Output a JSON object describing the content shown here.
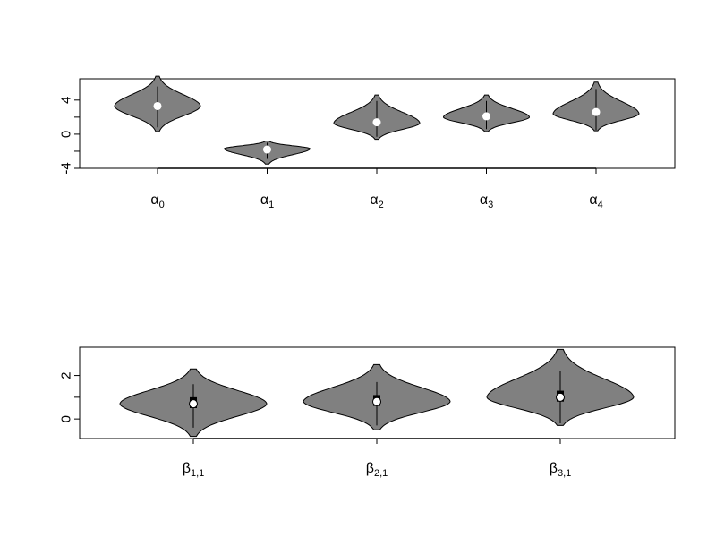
{
  "chart_data": [
    {
      "type": "violin",
      "title": "",
      "xlabel": "",
      "ylabel": "",
      "ylim": [
        -4,
        6.5
      ],
      "yticks": [
        -4,
        0,
        4
      ],
      "categories": [
        {
          "base": "α",
          "sub": "0"
        },
        {
          "base": "α",
          "sub": "1"
        },
        {
          "base": "α",
          "sub": "2"
        },
        {
          "base": "α",
          "sub": "3"
        },
        {
          "base": "α",
          "sub": "4"
        }
      ],
      "violins": [
        {
          "min": 0.3,
          "max": 6.8,
          "mode": 3.3,
          "median": 3.3,
          "q1": 2.4,
          "q3": 4.2,
          "lo": 0.8,
          "hi": 5.6
        },
        {
          "min": -3.5,
          "max": -0.8,
          "mode": -1.7,
          "median": -1.8,
          "q1": -2.2,
          "q3": -1.3,
          "lo": -2.9,
          "hi": -1.0
        },
        {
          "min": -0.6,
          "max": 4.6,
          "mode": 1.3,
          "median": 1.4,
          "q1": 0.7,
          "q3": 2.2,
          "lo": -0.3,
          "hi": 3.9
        },
        {
          "min": 0.3,
          "max": 4.6,
          "mode": 2.0,
          "median": 2.1,
          "q1": 1.5,
          "q3": 2.8,
          "lo": 0.6,
          "hi": 3.9
        },
        {
          "min": 0.4,
          "max": 6.1,
          "mode": 2.4,
          "median": 2.6,
          "q1": 1.9,
          "q3": 3.5,
          "lo": 0.5,
          "hi": 5.3
        }
      ],
      "box_style": "point",
      "fill": "#808080"
    },
    {
      "type": "violin",
      "title": "",
      "xlabel": "",
      "ylabel": "",
      "ylim": [
        -0.9,
        3.3
      ],
      "yticks": [
        0,
        2
      ],
      "categories": [
        {
          "base": "β",
          "sub": "1,1"
        },
        {
          "base": "β",
          "sub": "2,1"
        },
        {
          "base": "β",
          "sub": "3,1"
        }
      ],
      "violins": [
        {
          "min": -0.8,
          "max": 2.3,
          "mode": 0.7,
          "median": 0.7,
          "q1": 0.5,
          "q3": 1.0,
          "lo": -0.4,
          "hi": 1.6
        },
        {
          "min": -0.5,
          "max": 2.5,
          "mode": 0.8,
          "median": 0.8,
          "q1": 0.6,
          "q3": 1.1,
          "lo": -0.3,
          "hi": 1.7
        },
        {
          "min": -0.3,
          "max": 3.2,
          "mode": 1.0,
          "median": 1.0,
          "q1": 0.8,
          "q3": 1.3,
          "lo": -0.2,
          "hi": 2.2
        }
      ],
      "box_style": "box",
      "fill": "#808080"
    }
  ]
}
